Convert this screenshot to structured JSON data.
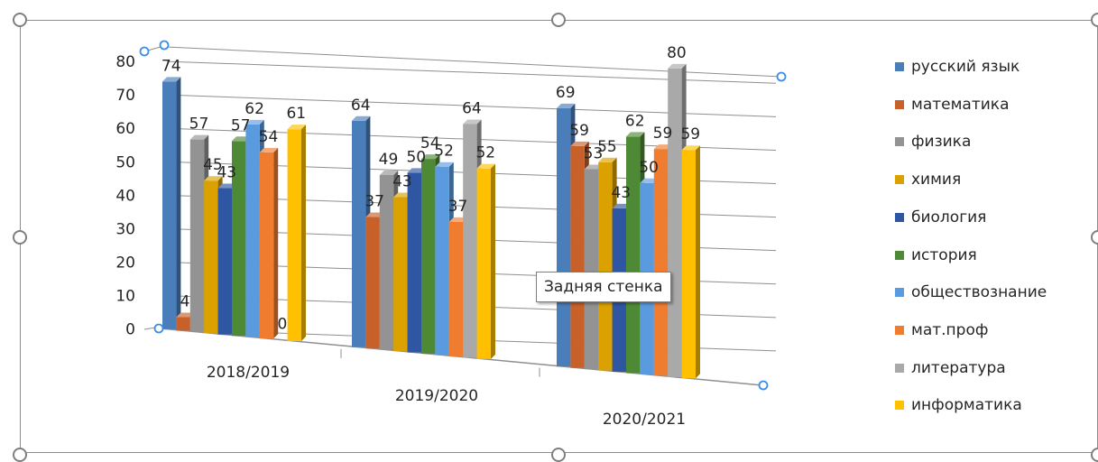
{
  "chart_data": {
    "type": "bar",
    "categories": [
      "2018/2019",
      "2019/2020",
      "2020/2021"
    ],
    "series": [
      {
        "name": "русский язык",
        "color": "#4a7ebb",
        "values": [
          74,
          64,
          69
        ]
      },
      {
        "name": "математика",
        "color": "#c8602a",
        "values": [
          4,
          37,
          59
        ]
      },
      {
        "name": "физика",
        "color": "#939393",
        "values": [
          57,
          49,
          53
        ]
      },
      {
        "name": "химия",
        "color": "#daa100",
        "values": [
          45,
          43,
          55
        ]
      },
      {
        "name": "биология",
        "color": "#2f56a3",
        "values": [
          43,
          50,
          43
        ]
      },
      {
        "name": "история",
        "color": "#4e8a35",
        "values": [
          57,
          54,
          62
        ]
      },
      {
        "name": "обществознание",
        "color": "#5a9be0",
        "values": [
          62,
          52,
          50
        ]
      },
      {
        "name": "мат.проф",
        "color": "#f07c30",
        "values": [
          54,
          37,
          59
        ]
      },
      {
        "name": "литература",
        "color": "#a9a9a9",
        "values": [
          0,
          64,
          80
        ]
      },
      {
        "name": "информатика",
        "color": "#ffc000",
        "values": [
          61,
          52,
          59
        ]
      }
    ],
    "y_ticks": [
      "0",
      "10",
      "20",
      "30",
      "40",
      "50",
      "60",
      "70",
      "80"
    ],
    "ylim": [
      0,
      80
    ],
    "grid": true,
    "legend_position": "right",
    "view": "3d-perspective"
  },
  "tooltip": {
    "text": "Задняя стенка"
  }
}
